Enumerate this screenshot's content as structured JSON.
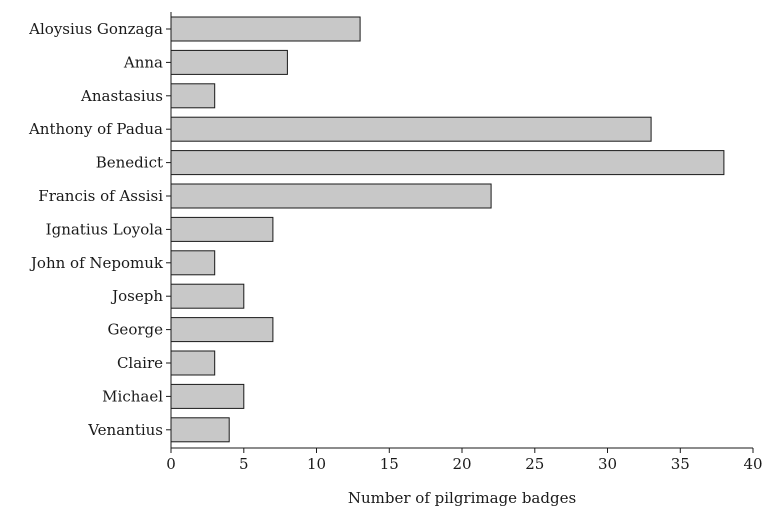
{
  "chart_data": {
    "type": "bar",
    "orientation": "horizontal",
    "categories": [
      "Aloysius Gonzaga",
      "Anna",
      "Anastasius",
      "Anthony of Padua",
      "Benedict",
      "Francis of Assisi",
      "Ignatius Loyola",
      "John of Nepomuk",
      "Joseph",
      "George",
      "Claire",
      "Michael",
      "Venantius"
    ],
    "values": [
      13,
      8,
      3,
      33,
      38,
      22,
      7,
      3,
      5,
      7,
      3,
      5,
      4
    ],
    "xlabel": "Number of pilgrimage badges",
    "ylabel": "",
    "xlim": [
      0,
      40
    ],
    "xticks": [
      0,
      5,
      10,
      15,
      20,
      25,
      30,
      35,
      40
    ],
    "grid": false,
    "bar_color": "#c8c8c8"
  }
}
